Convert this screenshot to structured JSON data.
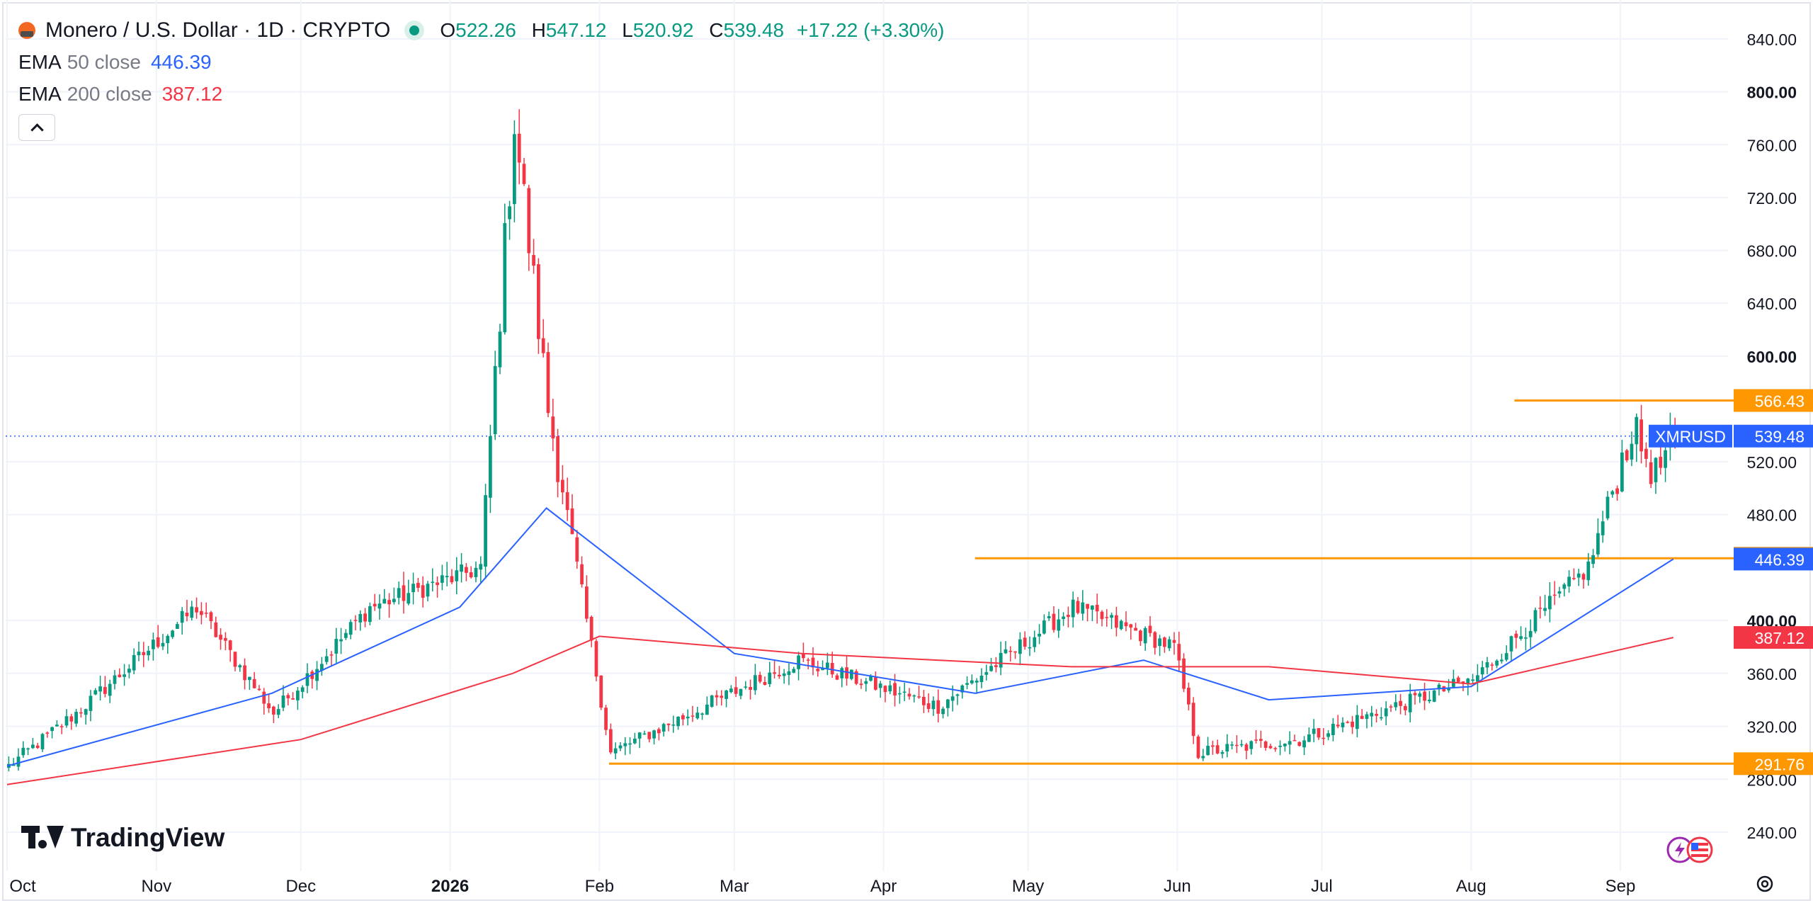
{
  "header": {
    "title": "Monero / U.S. Dollar · 1D · CRYPTO",
    "ohlc": [
      {
        "key": "O",
        "value": "522.26"
      },
      {
        "key": "H",
        "value": "547.12"
      },
      {
        "key": "L",
        "value": "520.92"
      },
      {
        "key": "C",
        "value": "539.48"
      }
    ],
    "change": "+17.22 (+3.30%)",
    "icon": "monero-icon"
  },
  "indicators": [
    {
      "name": "EMA",
      "param": "50 close",
      "value": "446.39",
      "color": "#2962ff"
    },
    {
      "name": "EMA",
      "param": "200 close",
      "value": "387.12",
      "color": "#f23645"
    }
  ],
  "brand": "TradingView",
  "colors": {
    "up": "#089981",
    "down": "#f23645",
    "level": "#ff9800",
    "ema50": "#2962ff",
    "ema200": "#f23645",
    "grid": "#f0f3fa"
  },
  "chart_data": {
    "type": "candlestick",
    "symbol": "XMRUSD",
    "last_price": 539.48,
    "interval": "1D",
    "y_axis": {
      "min": 220,
      "max": 850,
      "ticks": [
        240,
        280,
        320,
        360,
        400,
        480,
        520,
        600,
        640,
        680,
        720,
        760,
        800,
        840
      ],
      "bold_ticks": [
        400,
        600,
        800
      ]
    },
    "x_axis": {
      "labels": [
        "Oct",
        "Nov",
        "Dec",
        "2026",
        "Feb",
        "Mar",
        "Apr",
        "May",
        "Jun",
        "Jul",
        "Aug",
        "Sep"
      ],
      "bold": [
        "2026"
      ]
    },
    "horizontal_levels": [
      {
        "value": 566.43,
        "label": "566.43",
        "from": "2026-08-10"
      },
      {
        "value": 447.01,
        "label": "447.01",
        "from": "2026-04-20"
      },
      {
        "value": 291.76,
        "label": "291.76",
        "from": "2026-02-03"
      }
    ],
    "price_labels": [
      {
        "value": 539.48,
        "label": "539.48",
        "name": "XMRUSD",
        "color": "#2962ff"
      },
      {
        "value": 446.39,
        "label": "446.39",
        "color": "#2962ff"
      },
      {
        "value": 387.12,
        "label": "387.12",
        "color": "#f23645"
      }
    ],
    "key_points": [
      {
        "date": "2025-10-01",
        "close": 290
      },
      {
        "date": "2025-10-15",
        "close": 330
      },
      {
        "date": "2025-11-09",
        "close": 410
      },
      {
        "date": "2025-11-25",
        "close": 330
      },
      {
        "date": "2025-12-15",
        "close": 410
      },
      {
        "date": "2026-01-07",
        "close": 440
      },
      {
        "date": "2026-01-14",
        "close": 780
      },
      {
        "date": "2026-01-21",
        "close": 560
      },
      {
        "date": "2026-02-03",
        "close": 300
      },
      {
        "date": "2026-03-14",
        "close": 370
      },
      {
        "date": "2026-04-12",
        "close": 335
      },
      {
        "date": "2026-05-10",
        "close": 410
      },
      {
        "date": "2026-05-31",
        "close": 380
      },
      {
        "date": "2026-06-05",
        "close": 300
      },
      {
        "date": "2026-06-26",
        "close": 310
      },
      {
        "date": "2026-08-01",
        "close": 355
      },
      {
        "date": "2026-08-25",
        "close": 440
      },
      {
        "date": "2026-09-03",
        "close": 545
      },
      {
        "date": "2026-09-08",
        "close": 510
      },
      {
        "date": "2026-09-12",
        "close": 539.48
      }
    ],
    "ema50_points": [
      {
        "date": "2025-10-01",
        "value": 290
      },
      {
        "date": "2025-11-25",
        "value": 345
      },
      {
        "date": "2026-01-03",
        "value": 410
      },
      {
        "date": "2026-01-21",
        "value": 485
      },
      {
        "date": "2026-03-01",
        "value": 375
      },
      {
        "date": "2026-04-20",
        "value": 345
      },
      {
        "date": "2026-05-25",
        "value": 370
      },
      {
        "date": "2026-06-20",
        "value": 340
      },
      {
        "date": "2026-08-01",
        "value": 350
      },
      {
        "date": "2026-09-12",
        "value": 446.39
      }
    ],
    "ema200_points": [
      {
        "date": "2025-10-01",
        "value": 276
      },
      {
        "date": "2025-12-01",
        "value": 310
      },
      {
        "date": "2026-01-14",
        "value": 360
      },
      {
        "date": "2026-02-01",
        "value": 388
      },
      {
        "date": "2026-03-15",
        "value": 375
      },
      {
        "date": "2026-05-10",
        "value": 365
      },
      {
        "date": "2026-06-20",
        "value": 365
      },
      {
        "date": "2026-08-01",
        "value": 352
      },
      {
        "date": "2026-09-12",
        "value": 387.12
      }
    ]
  }
}
